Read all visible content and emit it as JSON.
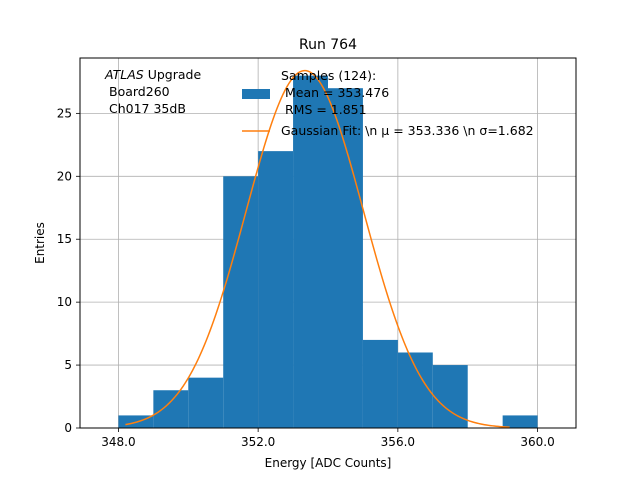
{
  "chart_data": {
    "type": "bar",
    "title": "Run 764",
    "xlabel": "Energy [ADC Counts]",
    "ylabel": "Entries",
    "xlim": [
      346.9,
      361.1
    ],
    "ylim": [
      0,
      29.4
    ],
    "xticks": [
      348.0,
      352.0,
      356.0,
      360.0
    ],
    "xtick_labels": [
      "348.0",
      "352.0",
      "356.0",
      "360.0"
    ],
    "yticks": [
      0,
      5,
      10,
      15,
      20,
      25
    ],
    "ytick_labels": [
      "0",
      "5",
      "10",
      "15",
      "20",
      "25"
    ],
    "grid": true,
    "bin_edges": [
      348,
      349,
      350,
      351,
      352,
      353,
      354,
      355,
      356,
      357,
      358,
      359,
      360
    ],
    "counts": [
      1,
      3,
      4,
      20,
      22,
      28,
      27,
      7,
      6,
      5,
      0,
      1
    ],
    "bar_color": "#1f77b4",
    "fit": {
      "name": "Gaussian Fit",
      "amplitude": 28.4,
      "mean": 353.336,
      "sigma": 1.682,
      "x_range": [
        348.2,
        359.2
      ],
      "color": "#ff7f0e"
    },
    "annotation": {
      "atlas": "ATLAS",
      "upgrade": "Upgrade",
      "board": "Board260",
      "channel": "Ch017 35dB"
    },
    "legend": {
      "position": "top-right",
      "histogram_lines": [
        "Samples (124):",
        " Mean = 353.476",
        " RMS = 1.851"
      ],
      "fit_label": "Gaussian Fit: \\n μ = 353.336 \\n σ=1.682"
    }
  }
}
